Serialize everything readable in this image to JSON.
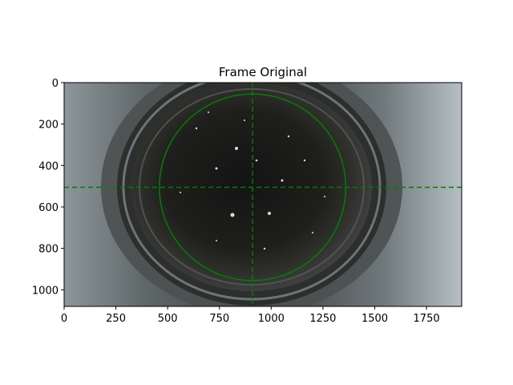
{
  "chart_data": {
    "type": "image",
    "title": "Frame Original",
    "xlabel": "",
    "ylabel": "",
    "xlim": [
      0,
      1920
    ],
    "ylim": [
      1080,
      0
    ],
    "x_ticks": [
      0,
      250,
      500,
      750,
      1000,
      1250,
      1500,
      1750
    ],
    "y_ticks": [
      0,
      200,
      400,
      600,
      800,
      1000
    ],
    "x_tick_labels": [
      "0",
      "250",
      "500",
      "750",
      "1000",
      "1250",
      "1500",
      "1750"
    ],
    "y_tick_labels": [
      "0",
      "200",
      "400",
      "600",
      "800",
      "1000"
    ],
    "overlay": {
      "color": "#008000",
      "circle": {
        "cx": 910,
        "cy": 505,
        "r": 450
      },
      "crosshair": {
        "x": 910,
        "y": 505,
        "style": "dashed"
      }
    }
  }
}
